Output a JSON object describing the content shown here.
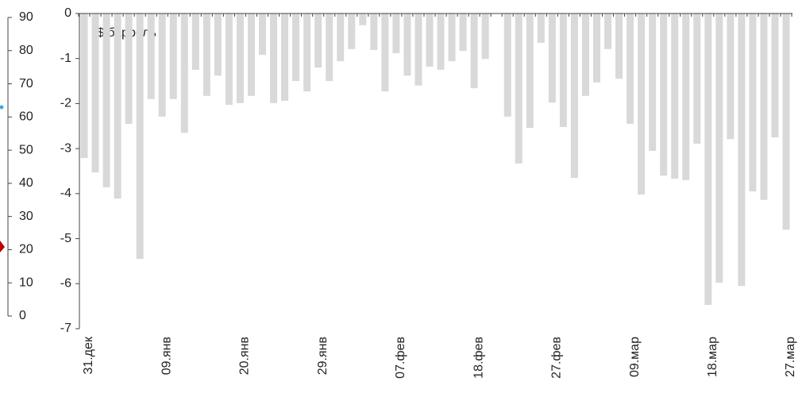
{
  "chart_data": {
    "type": "bar",
    "annotation": "$/баррель",
    "color": "#d9d9d9",
    "categories": [
      "31.дек",
      null,
      null,
      null,
      null,
      null,
      null,
      "09.янв",
      null,
      null,
      null,
      null,
      null,
      null,
      "20.янв",
      null,
      null,
      null,
      null,
      null,
      null,
      "29.янв",
      null,
      null,
      null,
      null,
      null,
      null,
      "07.фев",
      null,
      null,
      null,
      null,
      null,
      null,
      "18.фев",
      null,
      null,
      null,
      null,
      null,
      null,
      "27.фев",
      null,
      null,
      null,
      null,
      null,
      null,
      "09.мар",
      null,
      null,
      null,
      null,
      null,
      null,
      "18.мар",
      null,
      null,
      null,
      null,
      null,
      null,
      "27.мар"
    ],
    "values": [
      -3.21,
      -3.53,
      -3.86,
      -4.11,
      -2.45,
      -5.45,
      -1.9,
      -2.29,
      -1.9,
      -2.65,
      -1.25,
      -1.83,
      -1.38,
      -2.03,
      -1.99,
      -1.83,
      -0.92,
      -1.99,
      -1.94,
      -1.5,
      -1.73,
      -1.2,
      -1.5,
      -1.06,
      -0.79,
      -0.26,
      -0.81,
      -1.73,
      -0.88,
      -1.38,
      -1.6,
      -1.18,
      -1.25,
      -1.06,
      -0.83,
      -1.66,
      -1.01,
      null,
      -2.29,
      -3.33,
      -2.54,
      -0.65,
      -1.98,
      -2.52,
      -3.65,
      -1.83,
      -1.53,
      -0.79,
      -1.45,
      -2.45,
      -4.02,
      -3.05,
      -3.6,
      -3.67,
      -3.7,
      -2.89,
      -6.47,
      -5.98,
      -2.79,
      -6.05,
      -3.95,
      -4.14,
      -2.75,
      -4.8
    ],
    "ylim": [
      -7,
      0
    ],
    "yticks": [
      0,
      -1,
      -2,
      -3,
      -4,
      -5,
      -6,
      -7
    ],
    "y2lim": [
      0,
      90
    ],
    "y2ticks": [
      90,
      80,
      70,
      60,
      50,
      40,
      30,
      20,
      10,
      0
    ]
  }
}
